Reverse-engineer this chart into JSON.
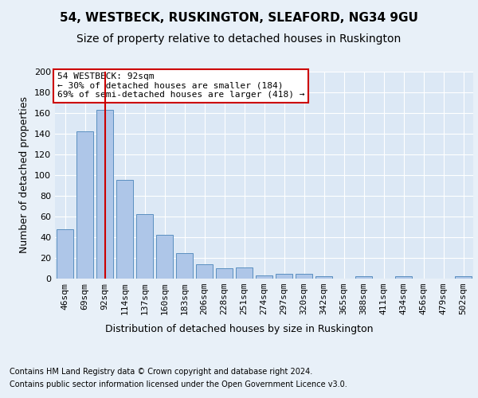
{
  "title": "54, WESTBECK, RUSKINGTON, SLEAFORD, NG34 9GU",
  "subtitle": "Size of property relative to detached houses in Ruskington",
  "xlabel": "Distribution of detached houses by size in Ruskington",
  "ylabel": "Number of detached properties",
  "categories": [
    "46sqm",
    "69sqm",
    "92sqm",
    "114sqm",
    "137sqm",
    "160sqm",
    "183sqm",
    "206sqm",
    "228sqm",
    "251sqm",
    "274sqm",
    "297sqm",
    "320sqm",
    "342sqm",
    "365sqm",
    "388sqm",
    "411sqm",
    "434sqm",
    "456sqm",
    "479sqm",
    "502sqm"
  ],
  "values": [
    48,
    142,
    163,
    95,
    62,
    42,
    25,
    14,
    10,
    11,
    3,
    5,
    5,
    2,
    0,
    2,
    0,
    2,
    0,
    0,
    2
  ],
  "bar_color": "#aec6e8",
  "bar_edge_color": "#5a8fc0",
  "highlight_bar_index": 2,
  "highlight_line_color": "#cc0000",
  "annotation_text": "54 WESTBECK: 92sqm\n← 30% of detached houses are smaller (184)\n69% of semi-detached houses are larger (418) →",
  "annotation_box_color": "#ffffff",
  "annotation_box_edge_color": "#cc0000",
  "ylim": [
    0,
    200
  ],
  "yticks": [
    0,
    20,
    40,
    60,
    80,
    100,
    120,
    140,
    160,
    180,
    200
  ],
  "footer1": "Contains HM Land Registry data © Crown copyright and database right 2024.",
  "footer2": "Contains public sector information licensed under the Open Government Licence v3.0.",
  "background_color": "#e8f0f8",
  "plot_background_color": "#dce8f5",
  "title_fontsize": 11,
  "subtitle_fontsize": 10,
  "axis_label_fontsize": 9,
  "tick_fontsize": 8,
  "annotation_fontsize": 8,
  "footer_fontsize": 7
}
